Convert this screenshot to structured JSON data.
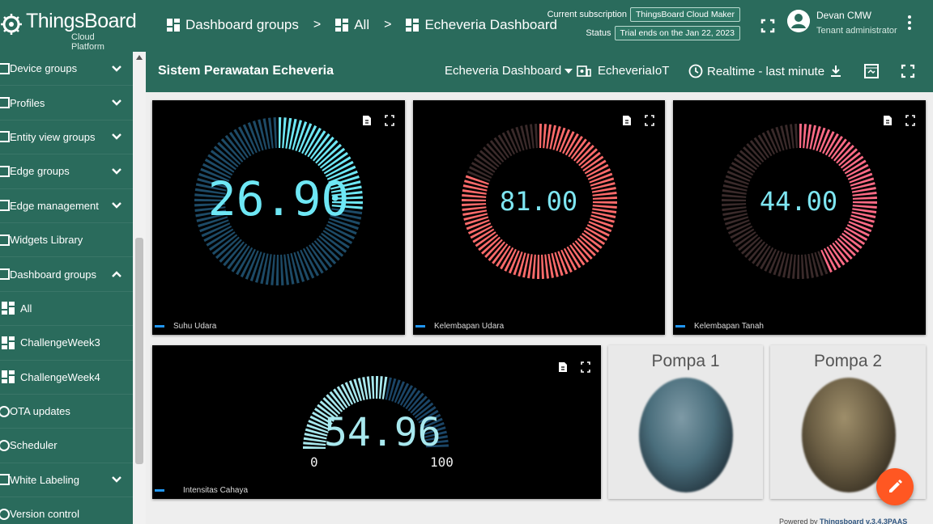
{
  "topbar": {
    "logo_name": "ThingsBoard",
    "logo_sub": "Cloud Platform",
    "breadcrumbs": [
      "Dashboard groups",
      "All",
      "Echeveria Dashboard"
    ],
    "subscription_label": "Current subscription",
    "subscription_value": "ThingsBoard Cloud Maker",
    "status_label": "Status",
    "status_value": "Trial ends on the Jan 22, 2023",
    "user_name": "Devan CMW",
    "user_role": "Tenant administrator"
  },
  "sidebar": {
    "items": [
      {
        "label": "Device groups",
        "icon": "device-groups-icon",
        "expandable": true
      },
      {
        "label": "Profiles",
        "icon": "profiles-icon",
        "expandable": true
      },
      {
        "label": "Entity view groups",
        "icon": "entity-view-icon",
        "expandable": true
      },
      {
        "label": "Edge groups",
        "icon": "edge-icon",
        "expandable": true
      },
      {
        "label": "Edge management",
        "icon": "edge-management-icon",
        "expandable": true
      },
      {
        "label": "Widgets Library",
        "icon": "widgets-icon",
        "expandable": false
      },
      {
        "label": "Dashboard groups",
        "icon": "dashboard-icon",
        "expandable": true,
        "expanded": true
      },
      {
        "label": "All",
        "icon": "dashboard-grid-icon",
        "sub": true
      },
      {
        "label": "ChallengeWeek3",
        "icon": "dashboard-grid-icon",
        "sub": true
      },
      {
        "label": "ChallengeWeek4",
        "icon": "dashboard-grid-icon",
        "sub": true
      },
      {
        "label": "OTA updates",
        "icon": "ota-icon",
        "expandable": false
      },
      {
        "label": "Scheduler",
        "icon": "scheduler-icon",
        "expandable": false
      },
      {
        "label": "White Labeling",
        "icon": "white-labeling-icon",
        "expandable": true
      },
      {
        "label": "Version control",
        "icon": "version-control-icon",
        "expandable": false
      }
    ]
  },
  "dashboard": {
    "title": "Sistem Perawatan Echeveria",
    "selector": "Echeveria Dashboard",
    "entity": "EcheveriaIoT",
    "timewindow": "Realtime - last minute"
  },
  "widgets": {
    "suhu": {
      "label": "Suhu Udara",
      "value": "26.90",
      "fraction": 0.269,
      "color": "#6ee7f5"
    },
    "kelembapan_udara": {
      "label": "Kelembapan Udara",
      "value": "81.00",
      "fraction": 0.81,
      "color": "#ff6b6b"
    },
    "kelembapan_tanah": {
      "label": "Kelembapan Tanah",
      "value": "44.00",
      "fraction": 0.44,
      "color": "#ff6b86"
    },
    "intensitas": {
      "label": "Intensitas Cahaya",
      "value": "54.96",
      "fraction": 0.5496,
      "min": "0",
      "max": "100",
      "color": "#a8e8ee"
    }
  },
  "lamps": {
    "pompa1": {
      "title": "Pompa 1",
      "color": "#4a6e7c"
    },
    "pompa2": {
      "title": "Pompa 2",
      "color": "#6b5e44"
    }
  },
  "footer": {
    "text": "Powered by",
    "link": "Thingsboard v.3.4.3PAAS"
  }
}
